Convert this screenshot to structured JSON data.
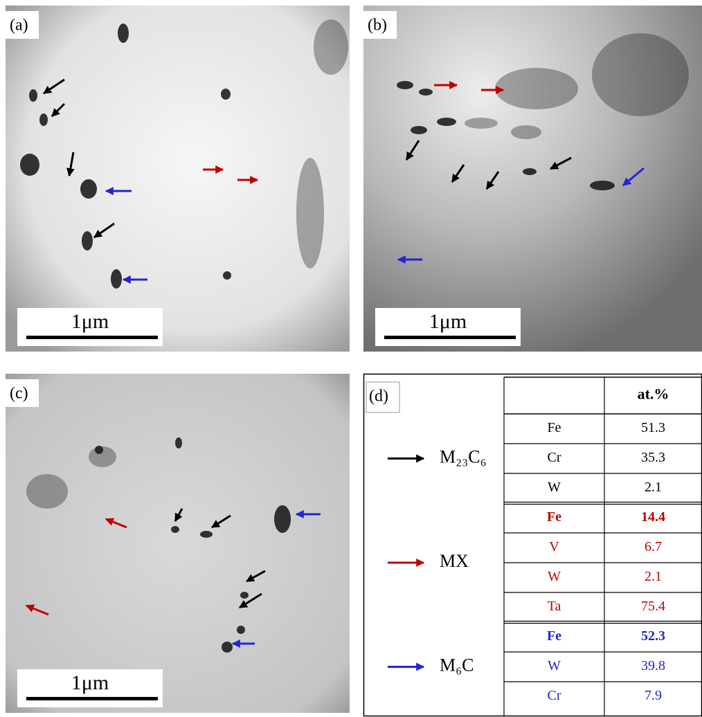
{
  "panels": [
    {
      "label": "(a)",
      "scale_bar": "1μm"
    },
    {
      "label": "(b)",
      "scale_bar": "1μm"
    },
    {
      "label": "(c)",
      "scale_bar": "1μm"
    }
  ],
  "table": {
    "label": "(d)",
    "header": "at.%",
    "groups": [
      {
        "phase": "M₂₃C₆",
        "color": "#000000",
        "rows": [
          {
            "element": "Fe",
            "value": 51.3,
            "bold": false
          },
          {
            "element": "Cr",
            "value": 35.3,
            "bold": false
          },
          {
            "element": "W",
            "value": 2.1,
            "bold": false
          }
        ]
      },
      {
        "phase": "MX",
        "color": "#c00000",
        "rows": [
          {
            "element": "Fe",
            "value": 14.4,
            "bold": true
          },
          {
            "element": "V",
            "value": 6.7,
            "bold": false
          },
          {
            "element": "W",
            "value": 2.1,
            "bold": false
          },
          {
            "element": "Ta",
            "value": 75.4,
            "bold": false
          }
        ]
      },
      {
        "phase": "M₆C",
        "color": "#2323d6",
        "rows": [
          {
            "element": "Fe",
            "value": 52.3,
            "bold": true
          },
          {
            "element": "W",
            "value": 39.8,
            "bold": false
          },
          {
            "element": "Cr",
            "value": 7.9,
            "bold": false
          }
        ]
      }
    ]
  }
}
